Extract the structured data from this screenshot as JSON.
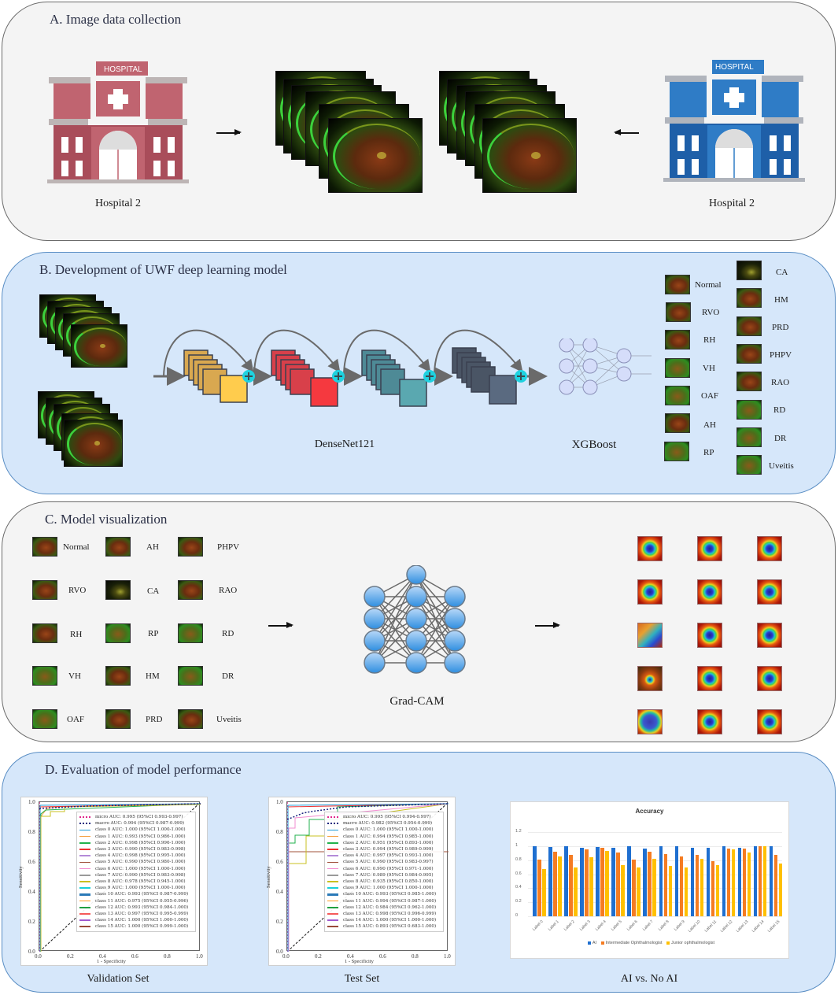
{
  "sections": {
    "a": {
      "title": "A. Image data collection",
      "left_hospital": {
        "sign": "HOSPITAL",
        "caption": "Hospital 2",
        "color": "#c06470"
      },
      "right_hospital": {
        "sign": "HOSPITAL",
        "caption": "Hospital 2",
        "color": "#2f7cc6"
      }
    },
    "b": {
      "title": "B. Development of UWF deep learning model",
      "backbone_label": "DenseNet121",
      "classifier_label": "XGBoost",
      "block_colors": [
        "#ffcc4d",
        "#f5393f",
        "#5aa8b0",
        "#5a6a80"
      ],
      "classes_left": [
        "Normal",
        "RVO",
        "RH",
        "VH",
        "OAF",
        "AH",
        "RP"
      ],
      "classes_right": [
        "CA",
        "HM",
        "PRD",
        "PHPV",
        "RAO",
        "RD",
        "DR",
        "Uveitis"
      ]
    },
    "c": {
      "title": "C. Model visualization",
      "method_label": "Grad-CAM",
      "grid": [
        [
          "Normal",
          "AH",
          "PHPV"
        ],
        [
          "RVO",
          "CA",
          "RAO"
        ],
        [
          "RH",
          "RP",
          "RD"
        ],
        [
          "VH",
          "HM",
          "DR"
        ],
        [
          "OAF",
          "PRD",
          "Uveitis"
        ]
      ]
    },
    "d": {
      "title": "D. Evaluation of model performance",
      "captions": [
        "Validation Set",
        "Test Set",
        "AI vs. No AI"
      ]
    }
  },
  "chart_data": [
    {
      "type": "line",
      "title": "Validation Set",
      "xlabel": "1 - Specificity",
      "ylabel": "Sensitivity",
      "xlim": [
        0,
        1.0
      ],
      "ylim": [
        0,
        1.0
      ],
      "xticks": [
        "0.0",
        "0.2",
        "0.4",
        "0.6",
        "0.8",
        "1.0"
      ],
      "yticks": [
        "0.0",
        "0.2",
        "0.4",
        "0.6",
        "0.8",
        "1.0"
      ],
      "legend_position": "upper right",
      "series": [
        {
          "name": "micro AUC: 0.995 (95%CI 0.993-0.997)",
          "color": "#e0288c",
          "style": "dotted"
        },
        {
          "name": "macro AUC: 0.994 (95%CI 0.987-0.999)",
          "color": "#1a237e",
          "style": "dotted"
        },
        {
          "name": "class 0 AUC: 1.000 (95%CI 1.000-1.000)",
          "color": "#1f9bd7"
        },
        {
          "name": "class 1 AUC: 0.993 (95%CI 0.986-1.000)",
          "color": "#f5a142"
        },
        {
          "name": "class 2 AUC: 0.998 (95%CI 0.996-1.000)",
          "color": "#22b24c"
        },
        {
          "name": "class 3 AUC: 0.990 (95%CI 0.983-0.998)",
          "color": "#ee3030"
        },
        {
          "name": "class 4 AUC: 0.998 (95%CI 0.995-1.000)",
          "color": "#b48ad8"
        },
        {
          "name": "class 5 AUC: 0.990 (95%CI 0.980-1.000)",
          "color": "#a0503a"
        },
        {
          "name": "class 6 AUC: 1.000 (95%CI 1.000-1.000)",
          "color": "#f28cd0"
        },
        {
          "name": "class 7 AUC: 0.990 (95%CI 0.983-0.998)",
          "color": "#9a9a9a"
        },
        {
          "name": "class 8 AUC: 0.978 (95%CI 0.945-1.000)",
          "color": "#c8c020"
        },
        {
          "name": "class 9 AUC: 1.000 (95%CI 1.000-1.000)",
          "color": "#18d0d8"
        },
        {
          "name": "class 10 AUC: 0.993 (95%CI 0.987-0.999)",
          "color": "#2a7ab8"
        },
        {
          "name": "class 11 AUC: 0.975 (95%CI 0.955-0.996)",
          "color": "#ff9a20"
        },
        {
          "name": "class 12 AUC: 0.993 (95%CI 0.984-1.000)",
          "color": "#20a040"
        },
        {
          "name": "class 13 AUC: 0.997 (95%CI 0.995-0.999)",
          "color": "#f55a5a"
        },
        {
          "name": "class 14 AUC: 1.000 (95%CI 1.000-1.000)",
          "color": "#a05ad0"
        },
        {
          "name": "class 15 AUC: 1.000 (95%CI 0.999-1.000)",
          "color": "#9a4a3a"
        }
      ]
    },
    {
      "type": "line",
      "title": "Test Set",
      "xlabel": "1 - Specificity",
      "ylabel": "Sensitivity",
      "xlim": [
        0,
        1.0
      ],
      "ylim": [
        0,
        1.0
      ],
      "xticks": [
        "0.0",
        "0.2",
        "0.4",
        "0.6",
        "0.8",
        "1.0"
      ],
      "yticks": [
        "0.0",
        "0.2",
        "0.4",
        "0.6",
        "0.8",
        "1.0"
      ],
      "legend_position": "upper right",
      "series": [
        {
          "name": "micro AUC: 0.995 (95%CI 0.994-0.997)",
          "color": "#e0288c",
          "style": "dotted"
        },
        {
          "name": "macro AUC: 0.982 (95%CI 0.954-0.999)",
          "color": "#1a237e",
          "style": "dotted"
        },
        {
          "name": "class 0 AUC: 1.000 (95%CI 1.000-1.000)",
          "color": "#1f9bd7"
        },
        {
          "name": "class 1 AUC: 0.994 (95%CI 0.985-1.000)",
          "color": "#f5a142"
        },
        {
          "name": "class 2 AUC: 0.951 (95%CI 0.893-1.000)",
          "color": "#22b24c"
        },
        {
          "name": "class 3 AUC: 0.994 (95%CI 0.989-0.999)",
          "color": "#ee3030"
        },
        {
          "name": "class 4 AUC: 0.997 (95%CI 0.993-1.000)",
          "color": "#b48ad8"
        },
        {
          "name": "class 5 AUC: 0.990 (95%CI 0.983-0.997)",
          "color": "#a0503a"
        },
        {
          "name": "class 6 AUC: 0.990 (95%CI 0.971-1.000)",
          "color": "#f28cd0"
        },
        {
          "name": "class 7 AUC: 0.989 (95%CI 0.984-0.995)",
          "color": "#9a9a9a"
        },
        {
          "name": "class 8 AUC: 0.935 (95%CI 0.850-1.000)",
          "color": "#c8c020"
        },
        {
          "name": "class 9 AUC: 1.000 (95%CI 1.000-1.000)",
          "color": "#18d0d8"
        },
        {
          "name": "class 10 AUC: 0.993 (95%CI 0.985-1.000)",
          "color": "#2a7ab8"
        },
        {
          "name": "class 11 AUC: 0.994 (95%CI 0.987-1.000)",
          "color": "#ff9a20"
        },
        {
          "name": "class 12 AUC: 0.984 (95%CI 0.962-1.000)",
          "color": "#20a040"
        },
        {
          "name": "class 13 AUC: 0.998 (95%CI 0.996-0.999)",
          "color": "#f55a5a"
        },
        {
          "name": "class 14 AUC: 1.000 (95%CI 1.000-1.000)",
          "color": "#a05ad0"
        },
        {
          "name": "class 15 AUC: 0.893 (95%CI 0.683-1.000)",
          "color": "#9a4a3a"
        }
      ]
    },
    {
      "type": "bar",
      "title": "Accuracy",
      "caption": "AI vs. No AI",
      "xlabel": "",
      "ylabel": "",
      "ylim": [
        0,
        1.2
      ],
      "yticks": [
        "0",
        "0.2",
        "0.4",
        "0.6",
        "0.8",
        "1",
        "1.2"
      ],
      "grid": true,
      "legend_position": "bottom",
      "categories": [
        "Label 0",
        "Label 1",
        "Label 2",
        "Label 3",
        "Label 4",
        "Label 5",
        "Label 6",
        "Label 7",
        "Label 8",
        "Label 9",
        "Label 10",
        "Label 11",
        "Label 12",
        "Label 13",
        "Label 14",
        "Label 15"
      ],
      "series": [
        {
          "name": "AI",
          "color": "#1f6fd0",
          "values": [
            1.0,
            0.99,
            1.0,
            0.98,
            0.99,
            0.98,
            1.0,
            0.96,
            1.0,
            1.0,
            0.98,
            0.98,
            1.0,
            0.98,
            1.0,
            1.0
          ]
        },
        {
          "name": "Intermediate Ophthalmologist",
          "color": "#f57c22",
          "values": [
            0.81,
            0.92,
            0.88,
            0.95,
            0.98,
            0.91,
            0.81,
            0.92,
            0.89,
            0.85,
            0.88,
            0.79,
            0.97,
            0.97,
            1.0,
            0.87
          ]
        },
        {
          "name": "Junior ophthalmologist",
          "color": "#ffc000",
          "values": [
            0.67,
            0.85,
            0.7,
            0.84,
            0.93,
            0.73,
            0.69,
            0.82,
            0.72,
            0.69,
            0.82,
            0.73,
            0.95,
            0.91,
            1.0,
            0.75
          ]
        }
      ]
    }
  ]
}
